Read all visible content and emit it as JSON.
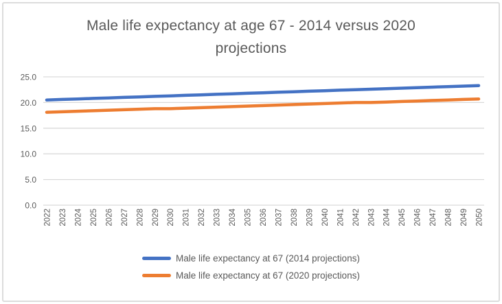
{
  "frame": {
    "border_color": "#dcdcdc",
    "background": "#ffffff"
  },
  "title": {
    "full": "Male life expectancy at age 67 - 2014 versus 2020 projections",
    "line1": "Male life expectancy at age 67 - 2014 versus 2020",
    "line2": "projections",
    "color": "#595959"
  },
  "chart_data": {
    "type": "line",
    "title": "Male life expectancy at age 67 - 2014 versus 2020 projections",
    "categories": [
      "2022",
      "2023",
      "2024",
      "2025",
      "2026",
      "2027",
      "2028",
      "2029",
      "2030",
      "2031",
      "2032",
      "2033",
      "2034",
      "2035",
      "2036",
      "2037",
      "2038",
      "2039",
      "2040",
      "2041",
      "2042",
      "2043",
      "2044",
      "2045",
      "2046",
      "2047",
      "2048",
      "2049",
      "2050"
    ],
    "series": [
      {
        "name": "Male life expectancy at 67 (2014 projections)",
        "color": "#4472C4",
        "values": [
          20.5,
          20.6,
          20.7,
          20.8,
          20.9,
          21.0,
          21.1,
          21.2,
          21.3,
          21.4,
          21.5,
          21.6,
          21.7,
          21.8,
          21.9,
          22.0,
          22.1,
          22.2,
          22.3,
          22.4,
          22.5,
          22.6,
          22.7,
          22.8,
          22.9,
          23.0,
          23.1,
          23.2,
          23.3
        ]
      },
      {
        "name": "Male life expectancy at 67 (2020 projections)",
        "color": "#ED7D31",
        "values": [
          18.1,
          18.2,
          18.3,
          18.4,
          18.5,
          18.6,
          18.7,
          18.8,
          18.8,
          18.9,
          19.0,
          19.1,
          19.2,
          19.3,
          19.4,
          19.5,
          19.6,
          19.7,
          19.8,
          19.9,
          20.0,
          20.0,
          20.1,
          20.2,
          20.3,
          20.4,
          20.5,
          20.6,
          20.7
        ]
      }
    ],
    "xlabel": "",
    "ylabel": "",
    "ylim": [
      0,
      25
    ],
    "ytick_step": 5,
    "ytick_labels": [
      "0.0",
      "5.0",
      "10.0",
      "15.0",
      "20.0",
      "25.0"
    ],
    "x_tick_rotation": 90,
    "grid": true,
    "grid_color": "#d9d9d9",
    "axis_text_color": "#595959",
    "legend_position": "bottom",
    "line_width": 4.5
  }
}
